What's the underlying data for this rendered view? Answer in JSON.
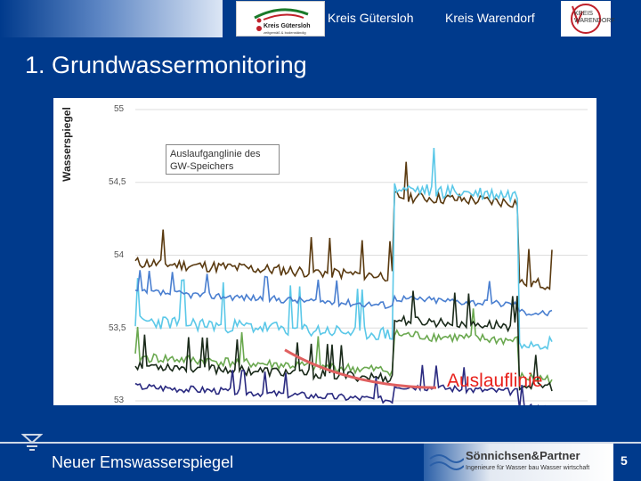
{
  "header": {
    "logo_left_text": "Kreis Gütersloh",
    "logo_left_subtext": "zeitgemäß & bodenständig",
    "region_1": "Kreis Gütersloh",
    "region_2": "Kreis Warendorf",
    "logo_right_line1": "KREIS",
    "logo_right_line2": "WARENDORF"
  },
  "slide": {
    "title": "1. Grundwassermonitoring",
    "footer_text": "Neuer Emswasserspiegel",
    "page_number": "5"
  },
  "footer_logo": {
    "name": "Sönnichsen&Partner",
    "subtitle": "Ingenieure für Wasser bau Wasser wirtschaft"
  },
  "chart_data": {
    "type": "line",
    "ylabel": "Wasserspiegel",
    "ylim": [
      53,
      55
    ],
    "yticks": [
      "55",
      "54,5",
      "54",
      "53,5",
      "53"
    ],
    "grid": true,
    "annotations": [
      "Auslaufganglinie des GW-Speichers",
      "Auslauflinie"
    ],
    "series_colors": [
      "#5a3a10",
      "#5bc8e8",
      "#1a2a1a",
      "#6aa84f",
      "#2a2a80",
      "#4a7fd0",
      "#e06060"
    ]
  }
}
